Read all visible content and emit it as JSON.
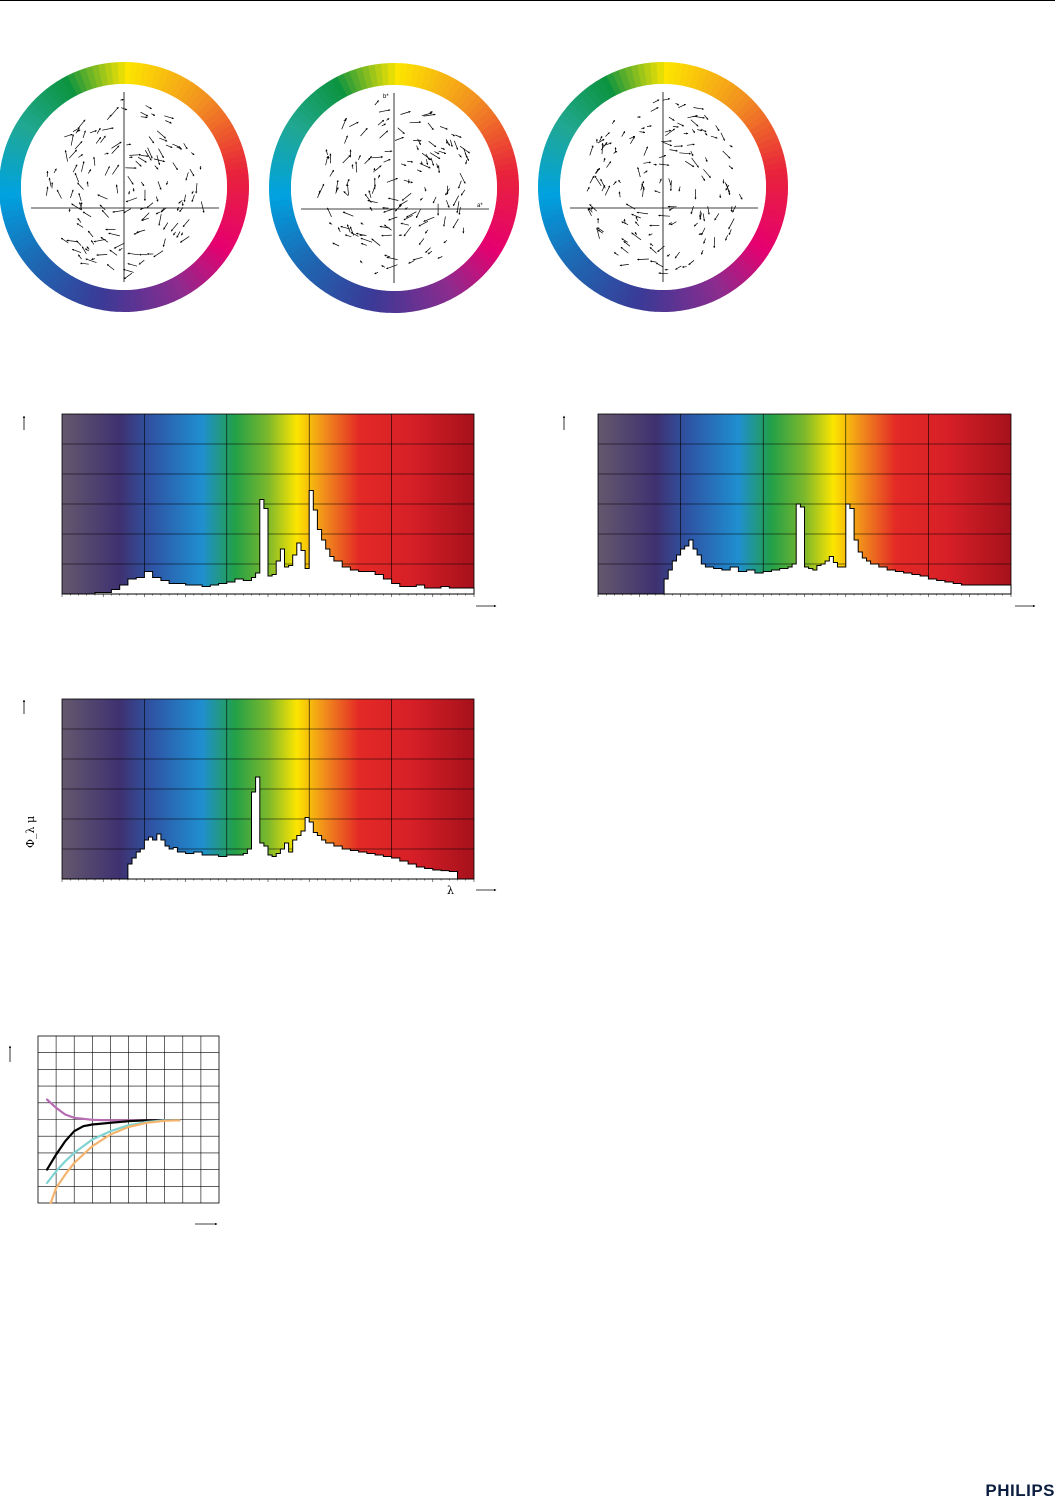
{
  "brand": {
    "logo_text": "PHILIPS"
  },
  "colors": {
    "band_colors": [
      "#64586e",
      "#3e3170",
      "#2e55a6",
      "#1f8fd0",
      "#23a048",
      "#7cb82c",
      "#fce500",
      "#f08a1c",
      "#e42a26",
      "#d61f27",
      "#a6111b"
    ],
    "curve_purple": "#b86cb4",
    "curve_black": "#000000",
    "curve_cyan": "#7fd3d0",
    "curve_orange": "#f5b46e"
  },
  "chart_data": [
    {
      "type": "scatter",
      "id": "color-shift-1",
      "axis_labels": {
        "a": "",
        "b": ""
      },
      "xlim": [
        -1,
        1
      ],
      "ylim": [
        -1,
        1
      ],
      "note": "colour shift vector field on a*/b* plane"
    },
    {
      "type": "scatter",
      "id": "color-shift-2",
      "axis_labels": {
        "a": "a*",
        "b": "b*"
      },
      "xlim": [
        -1,
        1
      ],
      "ylim": [
        -1,
        1
      ]
    },
    {
      "type": "scatter",
      "id": "color-shift-3",
      "axis_labels": {
        "a": "",
        "b": ""
      },
      "xlim": [
        -1,
        1
      ],
      "ylim": [
        -1,
        1
      ]
    },
    {
      "type": "area",
      "id": "spectrum-1",
      "xlim": [
        0,
        100
      ],
      "ylim": [
        0,
        6
      ],
      "x_label": "",
      "y_label": "",
      "x": [
        0,
        4,
        8,
        12,
        14,
        16,
        18,
        20,
        22,
        24,
        26,
        28,
        30,
        32,
        34,
        36,
        38,
        40,
        42,
        44,
        46,
        47,
        48,
        49,
        50,
        51,
        52,
        53,
        54,
        55,
        56,
        57,
        58,
        59,
        60,
        61,
        62,
        63,
        64,
        65,
        66,
        68,
        70,
        72,
        74,
        76,
        78,
        80,
        82,
        84,
        86,
        88,
        90,
        92,
        94,
        96,
        98,
        100
      ],
      "values": [
        0,
        0,
        0.05,
        0.15,
        0.3,
        0.5,
        0.55,
        0.75,
        0.55,
        0.45,
        0.35,
        0.35,
        0.3,
        0.3,
        0.25,
        0.3,
        0.35,
        0.4,
        0.5,
        0.45,
        0.55,
        0.7,
        3.15,
        2.85,
        0.6,
        0.65,
        1.1,
        1.5,
        0.9,
        0.95,
        1.3,
        1.7,
        1.45,
        0.85,
        3.45,
        2.8,
        2.15,
        1.8,
        1.5,
        1.25,
        1.1,
        0.9,
        0.8,
        0.75,
        0.75,
        0.65,
        0.5,
        0.35,
        0.25,
        0.25,
        0.3,
        0.2,
        0.2,
        0.25,
        0.2,
        0.2,
        0.2,
        0.15
      ]
    },
    {
      "type": "area",
      "id": "spectrum-2",
      "xlim": [
        0,
        100
      ],
      "ylim": [
        0,
        6
      ],
      "x_label": "",
      "y_label": "",
      "x": [
        0,
        15,
        16,
        17,
        18,
        19,
        20,
        21,
        22,
        23,
        24,
        25,
        26,
        28,
        30,
        32,
        34,
        36,
        38,
        40,
        42,
        44,
        46,
        47,
        48,
        49,
        50,
        51,
        52,
        53,
        54,
        55,
        56,
        57,
        58,
        59,
        60,
        61,
        62,
        63,
        64,
        65,
        66,
        68,
        70,
        72,
        74,
        76,
        78,
        80,
        82,
        84,
        86,
        88,
        89,
        90,
        100
      ],
      "values": [
        0,
        0,
        0.5,
        0.8,
        1.1,
        1.3,
        1.5,
        1.6,
        1.8,
        1.5,
        1.3,
        1.0,
        0.9,
        0.85,
        0.8,
        0.9,
        0.75,
        0.8,
        0.7,
        0.75,
        0.8,
        0.85,
        0.9,
        1.0,
        3.0,
        2.9,
        0.9,
        0.85,
        0.8,
        0.95,
        1.0,
        1.1,
        1.25,
        1.05,
        0.9,
        0.9,
        3.0,
        2.85,
        1.8,
        1.4,
        1.2,
        1.1,
        1.0,
        0.9,
        0.8,
        0.75,
        0.7,
        0.65,
        0.6,
        0.5,
        0.45,
        0.4,
        0.35,
        0.3,
        0.3,
        0.3,
        0
      ]
    },
    {
      "type": "area",
      "id": "spectrum-3",
      "xlim": [
        0,
        100
      ],
      "ylim": [
        0,
        6
      ],
      "x_label": "λ",
      "y_label": "Φ_λ μ",
      "x": [
        0,
        15,
        16,
        17,
        18,
        19,
        20,
        21,
        22,
        23,
        24,
        25,
        26,
        27,
        28,
        30,
        32,
        34,
        36,
        38,
        40,
        42,
        44,
        45,
        46,
        47,
        48,
        49,
        50,
        51,
        52,
        53,
        54,
        55,
        56,
        57,
        58,
        59,
        60,
        61,
        62,
        63,
        64,
        66,
        68,
        70,
        72,
        74,
        76,
        78,
        80,
        82,
        84,
        86,
        88,
        90,
        92,
        94,
        96,
        100
      ],
      "values": [
        0,
        0,
        0.5,
        0.7,
        0.9,
        1.0,
        1.3,
        1.4,
        1.3,
        1.5,
        1.3,
        1.1,
        1.0,
        1.05,
        0.9,
        0.85,
        0.9,
        0.8,
        0.8,
        0.75,
        0.8,
        0.8,
        0.85,
        1.0,
        2.9,
        3.4,
        1.2,
        1.1,
        0.8,
        0.75,
        0.85,
        1.0,
        1.2,
        0.9,
        1.3,
        1.45,
        1.6,
        2.05,
        1.9,
        1.55,
        1.45,
        1.3,
        1.2,
        1.1,
        1.0,
        0.95,
        0.9,
        0.85,
        0.8,
        0.75,
        0.7,
        0.6,
        0.5,
        0.4,
        0.35,
        0.3,
        0.28,
        0.25,
        0,
        0
      ]
    },
    {
      "type": "line",
      "id": "warmup-curves",
      "xlim": [
        0,
        10
      ],
      "ylim": [
        0,
        10
      ],
      "grid": true,
      "series": [
        {
          "color_key": "curve_purple",
          "x": [
            0.5,
            1,
            1.5,
            2,
            3,
            4,
            5,
            6,
            7.8
          ],
          "y": [
            6.2,
            5.7,
            5.3,
            5.1,
            4.98,
            4.95,
            4.95,
            4.95,
            4.95
          ]
        },
        {
          "color_key": "curve_black",
          "x": [
            0.5,
            1,
            1.5,
            2,
            2.5,
            3,
            4,
            5,
            6,
            7.8
          ],
          "y": [
            2.0,
            2.9,
            3.7,
            4.3,
            4.6,
            4.7,
            4.8,
            4.9,
            4.95,
            4.95
          ]
        },
        {
          "color_key": "curve_cyan",
          "x": [
            0.5,
            1,
            1.5,
            2,
            3,
            4,
            5,
            6,
            7,
            7.8
          ],
          "y": [
            1.2,
            1.9,
            2.5,
            3.0,
            3.8,
            4.3,
            4.65,
            4.85,
            4.95,
            4.95
          ]
        },
        {
          "color_key": "curve_orange",
          "x": [
            0.7,
            1,
            1.5,
            2,
            3,
            4,
            5,
            6,
            7,
            7.8
          ],
          "y": [
            0.0,
            0.9,
            1.7,
            2.4,
            3.4,
            4.1,
            4.55,
            4.8,
            4.92,
            4.95
          ]
        }
      ]
    }
  ]
}
